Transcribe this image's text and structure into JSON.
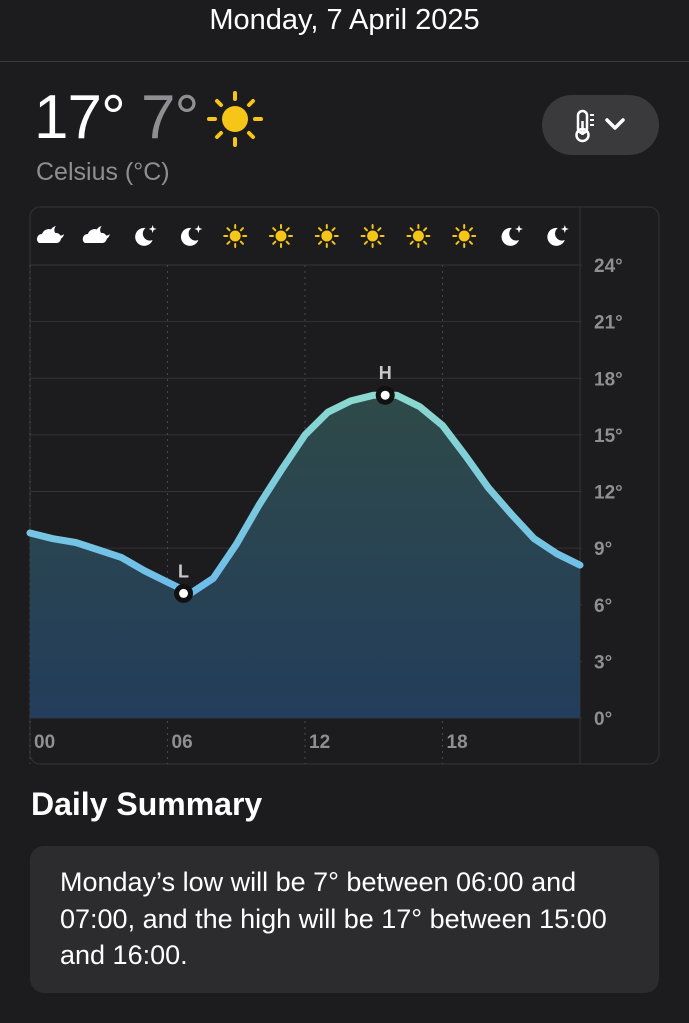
{
  "header": {
    "date": "Monday, 7 April 2025"
  },
  "current": {
    "high": "17°",
    "low": "7°",
    "unit": "Celsius (°C)"
  },
  "chart_data": {
    "type": "line",
    "x": [
      0,
      1,
      2,
      3,
      4,
      5,
      6,
      7,
      8,
      9,
      10,
      11,
      12,
      13,
      14,
      15,
      16,
      17,
      18,
      19,
      20,
      21,
      22,
      23,
      24
    ],
    "series": [
      {
        "color": "#74c6e8",
        "values": [
          9.8,
          9.5,
          9.3,
          8.9,
          8.5,
          7.8,
          7.2,
          6.6,
          7.4,
          9.2,
          11.3,
          13.2,
          15.0,
          16.2,
          16.8,
          17.1,
          17.1,
          16.5,
          15.5,
          13.9,
          12.2,
          10.8,
          9.5,
          8.7,
          8.1
        ]
      }
    ],
    "xlim": [
      0,
      24
    ],
    "xticks": [
      {
        "value": 0,
        "label": "00"
      },
      {
        "value": 6,
        "label": "06"
      },
      12,
      18
    ],
    "ylim": [
      0,
      24
    ],
    "yticks": [
      {
        "value": 0,
        "label": "0°"
      },
      {
        "value": 3,
        "label": "3°"
      },
      {
        "value": 6,
        "label": "6°"
      },
      {
        "value": 9,
        "label": "9°"
      },
      {
        "value": 12,
        "label": "12°"
      },
      {
        "value": 15,
        "label": "15°"
      },
      {
        "value": 18,
        "label": "18°"
      },
      {
        "value": 21,
        "label": "21°"
      },
      {
        "value": 24,
        "label": "24°"
      }
    ],
    "grid": true,
    "annotations": [
      {
        "label": "L",
        "x": 6.7,
        "y": 6.6
      },
      {
        "label": "H",
        "x": 15.5,
        "y": 17.1
      }
    ]
  },
  "summary": {
    "title": "Daily Summary",
    "text": "Monday’s low will be 7° between 06:00 and 07:00, and the high will be 17° between 15:00 and 16:00."
  }
}
